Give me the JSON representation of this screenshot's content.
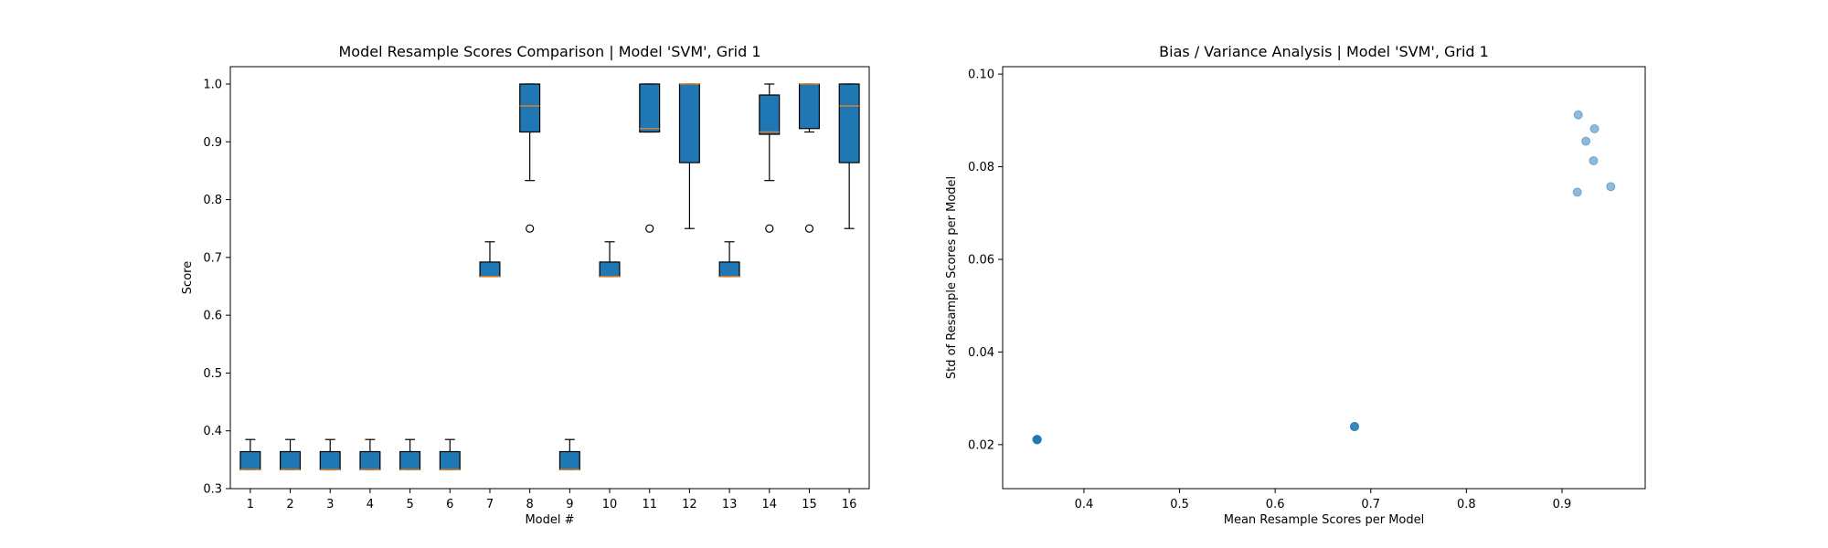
{
  "chart_data": [
    {
      "type": "box",
      "title": "Model Resample Scores Comparison | Model 'SVM', Grid 1",
      "xlabel": "Model #",
      "ylabel": "Score",
      "ylim": [
        0.3,
        1.03
      ],
      "yticks": [
        0.3,
        0.4,
        0.5,
        0.6,
        0.7,
        0.8,
        0.9,
        1.0
      ],
      "ytick_labels": [
        "0.3",
        "0.4",
        "0.5",
        "0.6",
        "0.7",
        "0.8",
        "0.9",
        "1.0"
      ],
      "categories": [
        "1",
        "2",
        "3",
        "4",
        "5",
        "6",
        "7",
        "8",
        "9",
        "10",
        "11",
        "12",
        "13",
        "14",
        "15",
        "16"
      ],
      "grid": false,
      "boxes": [
        {
          "whislo": 0.333,
          "q1": 0.333,
          "med": 0.333,
          "q3": 0.364,
          "whishi": 0.385,
          "fliers": []
        },
        {
          "whislo": 0.333,
          "q1": 0.333,
          "med": 0.333,
          "q3": 0.364,
          "whishi": 0.385,
          "fliers": []
        },
        {
          "whislo": 0.333,
          "q1": 0.333,
          "med": 0.333,
          "q3": 0.364,
          "whishi": 0.385,
          "fliers": []
        },
        {
          "whislo": 0.333,
          "q1": 0.333,
          "med": 0.333,
          "q3": 0.364,
          "whishi": 0.385,
          "fliers": []
        },
        {
          "whislo": 0.333,
          "q1": 0.333,
          "med": 0.333,
          "q3": 0.364,
          "whishi": 0.385,
          "fliers": []
        },
        {
          "whislo": 0.333,
          "q1": 0.333,
          "med": 0.333,
          "q3": 0.364,
          "whishi": 0.385,
          "fliers": []
        },
        {
          "whislo": 0.667,
          "q1": 0.667,
          "med": 0.667,
          "q3": 0.692,
          "whishi": 0.727,
          "fliers": []
        },
        {
          "whislo": 0.833,
          "q1": 0.917,
          "med": 0.962,
          "q3": 1.0,
          "whishi": 1.0,
          "fliers": [
            0.75
          ]
        },
        {
          "whislo": 0.333,
          "q1": 0.333,
          "med": 0.333,
          "q3": 0.364,
          "whishi": 0.385,
          "fliers": []
        },
        {
          "whislo": 0.667,
          "q1": 0.667,
          "med": 0.667,
          "q3": 0.692,
          "whishi": 0.727,
          "fliers": []
        },
        {
          "whislo": 0.917,
          "q1": 0.917,
          "med": 0.923,
          "q3": 1.0,
          "whishi": 1.0,
          "fliers": [
            0.75
          ]
        },
        {
          "whislo": 0.75,
          "q1": 0.864,
          "med": 1.0,
          "q3": 1.0,
          "whishi": 1.0,
          "fliers": []
        },
        {
          "whislo": 0.667,
          "q1": 0.667,
          "med": 0.667,
          "q3": 0.692,
          "whishi": 0.727,
          "fliers": []
        },
        {
          "whislo": 0.833,
          "q1": 0.913,
          "med": 0.917,
          "q3": 0.981,
          "whishi": 1.0,
          "fliers": [
            0.75
          ]
        },
        {
          "whislo": 0.917,
          "q1": 0.923,
          "med": 1.0,
          "q3": 1.0,
          "whishi": 1.0,
          "fliers": [
            0.75
          ]
        },
        {
          "whislo": 0.75,
          "q1": 0.864,
          "med": 0.962,
          "q3": 1.0,
          "whishi": 1.0,
          "fliers": []
        }
      ],
      "colors": {
        "box_fill": "#1f77b4",
        "median": "#ff7f0e",
        "line": "#000000"
      }
    },
    {
      "type": "scatter",
      "title": "Bias / Variance Analysis | Model 'SVM', Grid 1",
      "xlabel": "Mean Resample Scores per Model",
      "ylabel": "Std of Resample Scores per Model",
      "xlim": [
        0.315,
        0.987
      ],
      "ylim": [
        0.0105,
        0.1016
      ],
      "xticks": [
        0.4,
        0.5,
        0.6,
        0.7,
        0.8,
        0.9
      ],
      "xtick_labels": [
        "0.4",
        "0.5",
        "0.6",
        "0.7",
        "0.8",
        "0.9"
      ],
      "yticks": [
        0.02,
        0.04,
        0.06,
        0.08,
        0.1
      ],
      "ytick_labels": [
        "0.02",
        "0.04",
        "0.06",
        "0.08",
        "0.10"
      ],
      "grid": false,
      "points": [
        {
          "x": 0.351,
          "y": 0.0211
        },
        {
          "x": 0.351,
          "y": 0.0211
        },
        {
          "x": 0.351,
          "y": 0.0211
        },
        {
          "x": 0.351,
          "y": 0.0211
        },
        {
          "x": 0.351,
          "y": 0.0211
        },
        {
          "x": 0.351,
          "y": 0.0211
        },
        {
          "x": 0.351,
          "y": 0.0211
        },
        {
          "x": 0.683,
          "y": 0.0239
        },
        {
          "x": 0.683,
          "y": 0.0239
        },
        {
          "x": 0.683,
          "y": 0.0239
        },
        {
          "x": 0.917,
          "y": 0.0912
        },
        {
          "x": 0.934,
          "y": 0.0882
        },
        {
          "x": 0.925,
          "y": 0.0855
        },
        {
          "x": 0.933,
          "y": 0.0813
        },
        {
          "x": 0.951,
          "y": 0.0757
        },
        {
          "x": 0.916,
          "y": 0.0745
        }
      ],
      "colors": {
        "marker": "#1f77b4"
      },
      "marker_alpha": 0.5
    }
  ]
}
